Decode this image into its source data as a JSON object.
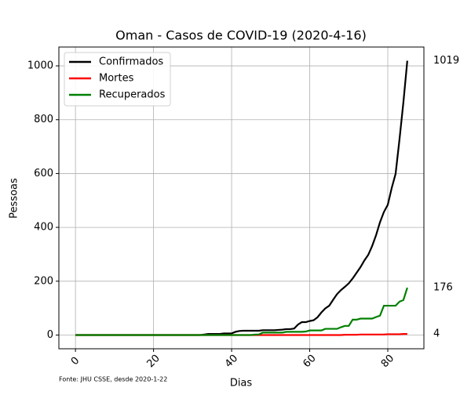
{
  "chart_data": {
    "type": "line",
    "title": "Oman - Casos de COVID-19 (2020-4-16)",
    "xlabel": "Dias",
    "ylabel": "Pessoas",
    "footnote": "Fonte: JHU CSSE, desde 2020-1-22",
    "x": [
      0,
      1,
      2,
      3,
      4,
      5,
      6,
      7,
      8,
      9,
      10,
      11,
      12,
      13,
      14,
      15,
      16,
      17,
      18,
      19,
      20,
      21,
      22,
      23,
      24,
      25,
      26,
      27,
      28,
      29,
      30,
      31,
      32,
      33,
      34,
      35,
      36,
      37,
      38,
      39,
      40,
      41,
      42,
      43,
      44,
      45,
      46,
      47,
      48,
      49,
      50,
      51,
      52,
      53,
      54,
      55,
      56,
      57,
      58,
      59,
      60,
      61,
      62,
      63,
      64,
      65,
      66,
      67,
      68,
      69,
      70,
      71,
      72,
      73,
      74,
      75,
      76,
      77,
      78,
      79,
      80,
      81,
      82,
      83,
      84,
      85
    ],
    "series": [
      {
        "name": "Confirmados",
        "color": "#000000",
        "values": [
          0,
          0,
          0,
          0,
          0,
          0,
          0,
          0,
          0,
          0,
          0,
          0,
          0,
          0,
          0,
          0,
          0,
          0,
          0,
          0,
          0,
          0,
          0,
          0,
          0,
          0,
          0,
          0,
          0,
          0,
          0,
          0,
          0,
          2,
          4,
          4,
          4,
          4,
          6,
          6,
          6,
          12,
          15,
          16,
          16,
          16,
          16,
          16,
          18,
          18,
          18,
          18,
          19,
          20,
          22,
          22,
          24,
          39,
          48,
          48,
          52,
          55,
          66,
          84,
          99,
          109,
          131,
          152,
          167,
          179,
          192,
          210,
          231,
          252,
          277,
          298,
          331,
          371,
          419,
          457,
          484,
          546,
          599,
          727,
          865,
          1019
        ]
      },
      {
        "name": "Mortes",
        "color": "#ff0000",
        "values": [
          0,
          0,
          0,
          0,
          0,
          0,
          0,
          0,
          0,
          0,
          0,
          0,
          0,
          0,
          0,
          0,
          0,
          0,
          0,
          0,
          0,
          0,
          0,
          0,
          0,
          0,
          0,
          0,
          0,
          0,
          0,
          0,
          0,
          0,
          0,
          0,
          0,
          0,
          0,
          0,
          0,
          0,
          0,
          0,
          0,
          0,
          0,
          0,
          0,
          0,
          0,
          0,
          0,
          0,
          0,
          0,
          0,
          0,
          0,
          0,
          0,
          0,
          0,
          0,
          0,
          0,
          0,
          0,
          0,
          1,
          1,
          1,
          1,
          2,
          2,
          2,
          2,
          2,
          2,
          2,
          3,
          3,
          3,
          3,
          4,
          4
        ]
      },
      {
        "name": "Recuperados",
        "color": "#008000",
        "values": [
          0,
          0,
          0,
          0,
          0,
          0,
          0,
          0,
          0,
          0,
          0,
          0,
          0,
          0,
          0,
          0,
          0,
          0,
          0,
          0,
          0,
          0,
          0,
          0,
          0,
          0,
          0,
          0,
          0,
          0,
          0,
          0,
          0,
          0,
          0,
          0,
          0,
          0,
          0,
          0,
          0,
          0,
          0,
          0,
          0,
          0,
          2,
          2,
          9,
          9,
          9,
          9,
          9,
          9,
          12,
          12,
          12,
          12,
          12,
          13,
          17,
          17,
          17,
          17,
          23,
          23,
          23,
          23,
          29,
          34,
          34,
          57,
          57,
          61,
          61,
          61,
          61,
          67,
          72,
          109,
          109,
          109,
          109,
          124,
          130,
          176
        ]
      }
    ],
    "xlim": [
      -4.25,
      89.25
    ],
    "ylim": [
      -51,
      1070
    ],
    "xticks": [
      0,
      20,
      40,
      60,
      80
    ],
    "yticks": [
      0,
      200,
      400,
      600,
      800,
      1000
    ],
    "grid": true,
    "legend": "upper left"
  }
}
